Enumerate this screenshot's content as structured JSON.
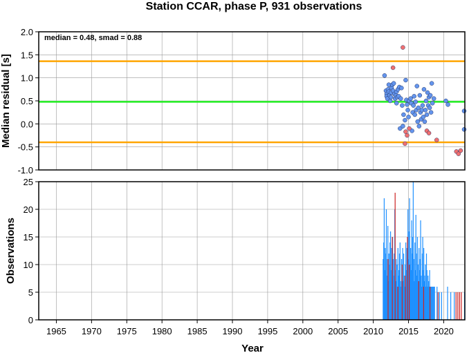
{
  "chart_data": [
    {
      "type": "scatter",
      "title": "Station CCAR, phase P, 931 observations",
      "ylabel": "Median residual [s]",
      "xlabel": "",
      "xlim": [
        1962.5,
        2023
      ],
      "ylim": [
        -1.0,
        2.0
      ],
      "yticks": [
        "2.0",
        "1.5",
        "1.0",
        "0.5",
        "0.0",
        "-0.5",
        "-1.0"
      ],
      "annotation": "median = 0.48, smad = 0.88",
      "grid": true,
      "hlines": [
        {
          "y": 1.36,
          "color": "#ffa500"
        },
        {
          "y": 0.48,
          "color": "#22ee22"
        },
        {
          "y": -0.4,
          "color": "#ffa500"
        }
      ],
      "series": [
        {
          "color": "#6495ed",
          "points": [
            [
              2011.6,
              1.05
            ],
            [
              2011.8,
              0.72
            ],
            [
              2011.9,
              0.65
            ],
            [
              2011.9,
              0.6
            ],
            [
              2012.0,
              0.55
            ],
            [
              2012.1,
              0.75
            ],
            [
              2012.2,
              0.7
            ],
            [
              2012.2,
              0.85
            ],
            [
              2012.3,
              0.62
            ],
            [
              2012.4,
              0.5
            ],
            [
              2012.5,
              0.58
            ],
            [
              2012.5,
              0.68
            ],
            [
              2012.6,
              0.78
            ],
            [
              2012.7,
              0.85
            ],
            [
              2012.8,
              0.72
            ],
            [
              2012.9,
              0.88
            ],
            [
              2013.0,
              0.65
            ],
            [
              2013.1,
              0.55
            ],
            [
              2013.2,
              0.62
            ],
            [
              2013.3,
              0.7
            ],
            [
              2013.3,
              0.45
            ],
            [
              2013.4,
              0.58
            ],
            [
              2013.5,
              0.75
            ],
            [
              2013.6,
              0.6
            ],
            [
              2013.7,
              0.8
            ],
            [
              2013.8,
              -0.1
            ],
            [
              2013.9,
              0.55
            ],
            [
              2014.0,
              0.78
            ],
            [
              2014.1,
              0.4
            ],
            [
              2014.2,
              -0.05
            ],
            [
              2014.3,
              0.2
            ],
            [
              2014.5,
              0.08
            ],
            [
              2014.6,
              0.95
            ],
            [
              2014.7,
              0.52
            ],
            [
              2014.8,
              0.42
            ],
            [
              2014.9,
              0.3
            ],
            [
              2015.0,
              0.15
            ],
            [
              2015.1,
              0.5
            ],
            [
              2015.3,
              0.55
            ],
            [
              2015.4,
              0.45
            ],
            [
              2015.5,
              -0.15
            ],
            [
              2015.6,
              0.25
            ],
            [
              2015.7,
              0.4
            ],
            [
              2015.8,
              0.6
            ],
            [
              2015.9,
              0.2
            ],
            [
              2016.0,
              0.48
            ],
            [
              2016.1,
              0.3
            ],
            [
              2016.2,
              0.82
            ],
            [
              2016.3,
              0.05
            ],
            [
              2016.4,
              0.35
            ],
            [
              2016.5,
              -0.05
            ],
            [
              2016.6,
              0.62
            ],
            [
              2016.7,
              0.25
            ],
            [
              2016.8,
              0.1
            ],
            [
              2016.9,
              0.3
            ],
            [
              2017.0,
              0.4
            ],
            [
              2017.1,
              0.15
            ],
            [
              2017.2,
              0.75
            ],
            [
              2017.3,
              0.05
            ],
            [
              2017.4,
              0.3
            ],
            [
              2017.5,
              0.5
            ],
            [
              2017.6,
              0.2
            ],
            [
              2017.7,
              0.68
            ],
            [
              2017.8,
              0.4
            ],
            [
              2017.9,
              0.58
            ],
            [
              2018.0,
              0.35
            ],
            [
              2018.1,
              0.62
            ],
            [
              2018.2,
              0.25
            ],
            [
              2018.3,
              0.88
            ],
            [
              2018.4,
              0.45
            ],
            [
              2018.6,
              0.55
            ],
            [
              2020.3,
              0.5
            ],
            [
              2020.6,
              0.42
            ],
            [
              2022.9,
              0.28
            ],
            [
              2022.9,
              -0.12
            ]
          ]
        },
        {
          "color": "#f07070",
          "points": [
            [
              2012.8,
              1.22
            ],
            [
              2014.2,
              1.66
            ],
            [
              2014.5,
              -0.43
            ],
            [
              2014.6,
              -0.17
            ],
            [
              2014.8,
              -0.25
            ],
            [
              2015.1,
              -0.1
            ],
            [
              2017.6,
              -0.15
            ],
            [
              2017.9,
              -0.2
            ],
            [
              2019.0,
              -0.35
            ],
            [
              2021.8,
              -0.6
            ],
            [
              2022.1,
              -0.65
            ],
            [
              2022.4,
              -0.58
            ]
          ]
        }
      ]
    },
    {
      "type": "bar",
      "ylabel": "Observations",
      "xlabel": "Year",
      "xlim": [
        1962.5,
        2023
      ],
      "ylim": [
        0,
        25
      ],
      "yticks": [
        "0",
        "5",
        "10",
        "15",
        "20",
        "25"
      ],
      "xticks": [
        "1965",
        "1970",
        "1975",
        "1980",
        "1985",
        "1990",
        "1995",
        "2000",
        "2005",
        "2010",
        "2015",
        "2020"
      ],
      "grid": true,
      "series": [
        {
          "color": "#1e90ff",
          "bars": [
            [
              2011.4,
              11
            ],
            [
              2011.48,
              14
            ],
            [
              2011.55,
              22
            ],
            [
              2011.62,
              9
            ],
            [
              2011.7,
              13
            ],
            [
              2011.77,
              12
            ],
            [
              2011.85,
              20
            ],
            [
              2011.92,
              8
            ],
            [
              2012.0,
              11
            ],
            [
              2012.07,
              17
            ],
            [
              2012.15,
              7
            ],
            [
              2012.22,
              12
            ],
            [
              2012.3,
              10
            ],
            [
              2012.37,
              14
            ],
            [
              2012.45,
              16
            ],
            [
              2012.52,
              9
            ],
            [
              2012.6,
              13
            ],
            [
              2012.67,
              6
            ],
            [
              2012.75,
              15
            ],
            [
              2012.82,
              11
            ],
            [
              2012.9,
              8
            ],
            [
              2012.97,
              12
            ],
            [
              2013.05,
              20
            ],
            [
              2013.12,
              9
            ],
            [
              2013.2,
              7
            ],
            [
              2013.27,
              11
            ],
            [
              2013.35,
              10
            ],
            [
              2013.42,
              6
            ],
            [
              2013.5,
              13
            ],
            [
              2013.57,
              8
            ],
            [
              2013.65,
              9
            ],
            [
              2013.72,
              12
            ],
            [
              2013.8,
              14
            ],
            [
              2013.87,
              7
            ],
            [
              2013.95,
              6
            ],
            [
              2014.02,
              11
            ],
            [
              2014.1,
              9
            ],
            [
              2014.17,
              13
            ],
            [
              2014.25,
              7
            ],
            [
              2014.32,
              12
            ],
            [
              2014.4,
              8
            ],
            [
              2014.47,
              6
            ],
            [
              2014.55,
              10
            ],
            [
              2014.62,
              14
            ],
            [
              2014.7,
              9
            ],
            [
              2014.77,
              13
            ],
            [
              2014.85,
              8
            ],
            [
              2014.92,
              20
            ],
            [
              2015.0,
              11
            ],
            [
              2015.07,
              16
            ],
            [
              2015.15,
              22
            ],
            [
              2015.22,
              10
            ],
            [
              2015.3,
              13
            ],
            [
              2015.37,
              9
            ],
            [
              2015.45,
              18
            ],
            [
              2015.52,
              12
            ],
            [
              2015.6,
              15
            ],
            [
              2015.67,
              25
            ],
            [
              2015.75,
              11
            ],
            [
              2015.82,
              7
            ],
            [
              2015.9,
              14
            ],
            [
              2015.97,
              9
            ],
            [
              2016.05,
              19
            ],
            [
              2016.12,
              12
            ],
            [
              2016.2,
              8
            ],
            [
              2016.27,
              15
            ],
            [
              2016.35,
              10
            ],
            [
              2016.42,
              7
            ],
            [
              2016.5,
              13
            ],
            [
              2016.57,
              9
            ],
            [
              2016.65,
              11
            ],
            [
              2016.72,
              18
            ],
            [
              2016.8,
              8
            ],
            [
              2016.87,
              6
            ],
            [
              2016.95,
              12
            ],
            [
              2017.02,
              15
            ],
            [
              2017.1,
              9
            ],
            [
              2017.17,
              13
            ],
            [
              2017.25,
              7
            ],
            [
              2017.32,
              8
            ],
            [
              2017.4,
              10
            ],
            [
              2017.47,
              6
            ],
            [
              2017.55,
              12
            ],
            [
              2017.62,
              9
            ],
            [
              2017.7,
              6
            ],
            [
              2017.77,
              8
            ],
            [
              2017.85,
              7
            ],
            [
              2017.92,
              6
            ],
            [
              2018.0,
              9
            ],
            [
              2018.1,
              6
            ],
            [
              2018.2,
              6
            ],
            [
              2018.3,
              6
            ],
            [
              2018.4,
              6
            ],
            [
              2018.5,
              6
            ],
            [
              2018.6,
              6
            ],
            [
              2018.7,
              6
            ],
            [
              2019.05,
              6
            ],
            [
              2019.4,
              5
            ],
            [
              2019.7,
              5
            ],
            [
              2020.55,
              6
            ],
            [
              2021.0,
              5
            ],
            [
              2021.5,
              5
            ],
            [
              2022.95,
              5
            ]
          ]
        },
        {
          "color": "#cc2222",
          "bars": [
            [
              2012.1,
              11
            ],
            [
              2012.7,
              15
            ],
            [
              2013.1,
              23
            ],
            [
              2013.5,
              6
            ],
            [
              2014.1,
              10
            ],
            [
              2014.55,
              8
            ],
            [
              2014.85,
              15
            ],
            [
              2015.1,
              10
            ],
            [
              2016.45,
              7
            ],
            [
              2017.15,
              6
            ],
            [
              2018.05,
              6
            ],
            [
              2019.2,
              5
            ],
            [
              2021.75,
              5
            ],
            [
              2022.0,
              5
            ],
            [
              2022.25,
              5
            ],
            [
              2022.5,
              5
            ]
          ]
        }
      ]
    }
  ]
}
